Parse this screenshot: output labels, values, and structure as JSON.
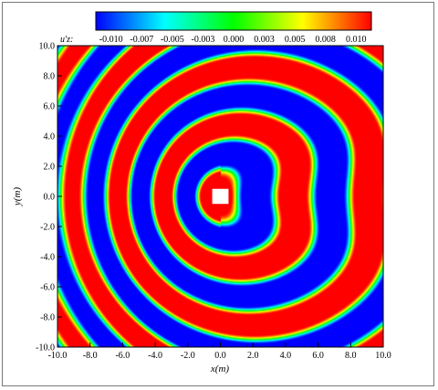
{
  "chart_data": {
    "type": "heatmap",
    "xlabel": "x(m)",
    "ylabel": "y(m)",
    "xlim": [
      -10.0,
      10.0
    ],
    "ylim": [
      -10.0,
      10.0
    ],
    "x_ticks": [
      "-10.0",
      "-8.0",
      "-6.0",
      "-4.0",
      "-2.0",
      "0.0",
      "2.0",
      "4.0",
      "6.0",
      "8.0",
      "10.0"
    ],
    "y_ticks": [
      "10.0",
      "8.0",
      "6.0",
      "4.0",
      "2.0",
      "0.0",
      "-2.0",
      "-4.0",
      "-6.0",
      "-8.0",
      "-10.0"
    ],
    "colorbar": {
      "label": "u'z:",
      "range": [
        -0.01,
        0.01
      ],
      "tick_labels": [
        "-0.010",
        "-0.007",
        "-0.005",
        "-0.003",
        "0.000",
        "0.003",
        "0.005",
        "0.008",
        "0.010"
      ],
      "colors": [
        "#0000ff",
        "#00ffff",
        "#00ff00",
        "#ffff00",
        "#ff0000"
      ]
    },
    "obstacle": {
      "x_range": [
        -0.5,
        0.5
      ],
      "y_range": [
        -0.5,
        0.5
      ]
    },
    "field": "circular wave pattern emanating from square obstacle at origin, saturated bands of +0.010 (red) and -0.010 (blue), wavelength decreasing toward x=-10"
  }
}
